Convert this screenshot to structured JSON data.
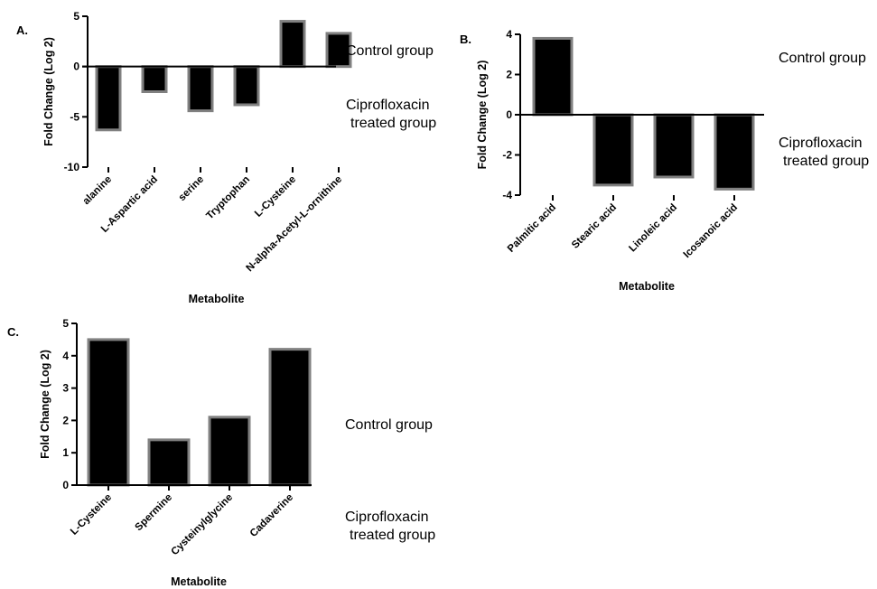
{
  "chart_data": [
    {
      "panel": "A.",
      "type": "bar",
      "categories": [
        "alanine",
        "L-Aspartic acid",
        "serine",
        "Tryptophan",
        "L-Cysteine",
        "N-alpha-Acetyl-L-ornithine"
      ],
      "values": [
        -6.3,
        -2.5,
        -4.4,
        -3.8,
        4.5,
        3.3
      ],
      "ylabel": "Fold Change (Log 2)",
      "xlabel": "Metabolite",
      "ylim": [
        -10,
        5
      ],
      "yticks": [
        -10,
        -5,
        0,
        5
      ],
      "annotations": {
        "upper": "Control group",
        "lower": [
          "Ciprofloxacin",
          "treated group"
        ]
      }
    },
    {
      "panel": "B.",
      "type": "bar",
      "categories": [
        "Palmitic acid",
        "Stearic acid",
        "Linoleic acid",
        "Icosanoic acid"
      ],
      "values": [
        3.8,
        -3.5,
        -3.1,
        -3.7
      ],
      "ylabel": "Fold Change (Log 2)",
      "xlabel": "Metabolite",
      "ylim": [
        -4,
        4
      ],
      "yticks": [
        -4,
        -2,
        0,
        2,
        4
      ],
      "annotations": {
        "upper": "Control group",
        "lower": [
          "Ciprofloxacin",
          "treated group"
        ]
      }
    },
    {
      "panel": "C.",
      "type": "bar",
      "categories": [
        "L-Cysteine",
        "Spermine",
        "Cysteinylglycine",
        "Cadaverine"
      ],
      "values": [
        4.5,
        1.4,
        2.1,
        4.2
      ],
      "ylabel": "Fold Change (Log 2)",
      "xlabel": "Metabolite",
      "ylim": [
        0,
        5
      ],
      "yticks": [
        0,
        1,
        2,
        3,
        4,
        5
      ],
      "annotations": {
        "upper": "Control group",
        "lower": [
          "Ciprofloxacin",
          "treated group"
        ]
      }
    }
  ]
}
